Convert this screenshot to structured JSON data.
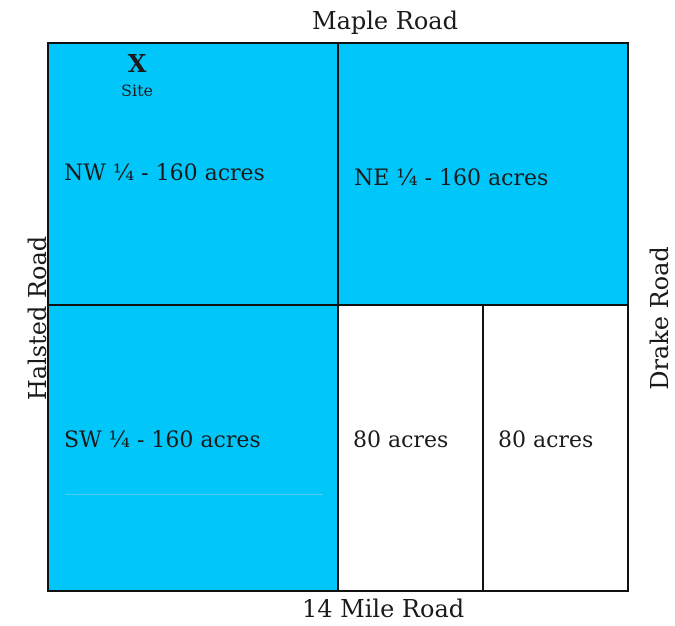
{
  "roads": {
    "north": "Maple Road",
    "south": "14 Mile Road",
    "west": "Halsted Road",
    "east": "Drake Road"
  },
  "site": {
    "marker": "X",
    "caption": "Site"
  },
  "parcels": {
    "nw": {
      "label": "NW ¼ - 160 acres",
      "fill": "#00c6fa"
    },
    "ne": {
      "label": "NE ¼ - 160 acres",
      "fill": "#00c6fa"
    },
    "sw": {
      "label": "SW ¼ - 160 acres",
      "fill": "#00c6fa"
    },
    "se_west": {
      "label": "80 acres",
      "fill": "#ffffff"
    },
    "se_east": {
      "label": "80 acres",
      "fill": "#ffffff"
    }
  },
  "colors": {
    "outline": "#111111",
    "highlight": "#00c6fa",
    "blank": "#ffffff"
  }
}
